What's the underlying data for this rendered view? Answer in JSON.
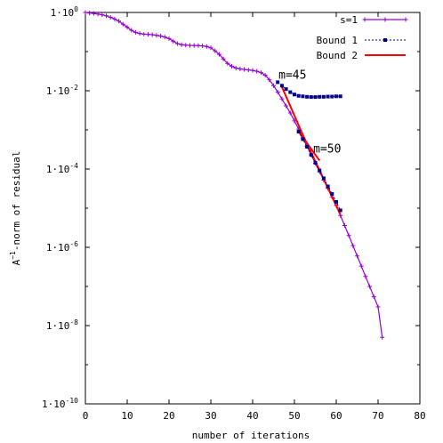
{
  "chart_data": {
    "type": "line",
    "xlabel": "number of iterations",
    "ylabel_parts": [
      "A",
      "−1",
      "-norm of residual"
    ],
    "xlim": [
      0,
      80
    ],
    "ylim": [
      1e-10,
      1
    ],
    "yscale": "log",
    "grid": false,
    "legend_position": "top-right",
    "x_ticks": [
      0,
      10,
      20,
      30,
      40,
      50,
      60,
      70,
      80
    ],
    "x_tick_labels": [
      "0",
      "10",
      "20",
      "30",
      "40",
      "50",
      "60",
      "70",
      "80"
    ],
    "y_ticks": [
      1,
      0.01,
      0.0001,
      1e-06,
      1e-08,
      1e-10
    ],
    "y_tick_labels": [
      {
        "base": "1·10",
        "exp": "0"
      },
      {
        "base": "1·10",
        "exp": "-2"
      },
      {
        "base": "1·10",
        "exp": "-4"
      },
      {
        "base": "1·10",
        "exp": "-6"
      },
      {
        "base": "1·10",
        "exp": "-8"
      },
      {
        "base": "1·10",
        "exp": "-10"
      }
    ],
    "annotations": [
      {
        "text": "m=45",
        "x": 46.2,
        "y": 0.0205
      },
      {
        "text": "m=50",
        "x": 54.5,
        "y": 0.00026
      }
    ],
    "series": [
      {
        "name": "s=1",
        "color": "#9400D3",
        "style": "line-plus",
        "x": [
          0,
          1,
          2,
          3,
          4,
          5,
          6,
          7,
          8,
          9,
          10,
          11,
          12,
          13,
          14,
          15,
          16,
          17,
          18,
          19,
          20,
          21,
          22,
          23,
          24,
          25,
          26,
          27,
          28,
          29,
          30,
          31,
          32,
          33,
          34,
          35,
          36,
          37,
          38,
          39,
          40,
          41,
          42,
          43,
          44,
          45,
          46,
          47,
          48,
          49,
          50,
          51,
          52,
          53,
          54,
          55,
          56,
          57,
          58,
          59,
          60,
          61,
          62,
          63,
          64,
          65,
          66,
          67,
          68,
          69,
          70,
          71
        ],
        "y": [
          1.0,
          0.97,
          0.94,
          0.91,
          0.87,
          0.82,
          0.75,
          0.68,
          0.6,
          0.5,
          0.42,
          0.35,
          0.31,
          0.29,
          0.28,
          0.275,
          0.27,
          0.26,
          0.25,
          0.235,
          0.215,
          0.185,
          0.16,
          0.15,
          0.146,
          0.144,
          0.143,
          0.142,
          0.14,
          0.135,
          0.125,
          0.105,
          0.085,
          0.065,
          0.05,
          0.042,
          0.038,
          0.036,
          0.035,
          0.034,
          0.033,
          0.0315,
          0.029,
          0.025,
          0.019,
          0.0135,
          0.0092,
          0.0062,
          0.0041,
          0.0027,
          0.0017,
          0.00105,
          0.00063,
          0.00038,
          0.00023,
          0.00014,
          8.5e-05,
          5.2e-05,
          3.2e-05,
          1.9e-05,
          1.17e-05,
          6.5e-06,
          3.6e-06,
          2e-06,
          1.1e-06,
          6e-07,
          3.3e-07,
          1.8e-07,
          9.91e-08,
          5.45e-08,
          3e-08,
          5e-09
        ]
      },
      {
        "name": "Bound 1",
        "color": "#00008B",
        "style": "dotted-square",
        "segments": [
          {
            "x": [
              46,
              47,
              48,
              49,
              50,
              51,
              52,
              53,
              54,
              55,
              56,
              57,
              58,
              59,
              60,
              61
            ],
            "y": [
              0.0165,
              0.0135,
              0.011,
              0.0092,
              0.008,
              0.0074,
              0.0072,
              0.007,
              0.0069,
              0.0069,
              0.007,
              0.007,
              0.0071,
              0.0071,
              0.0072,
              0.0072
            ]
          },
          {
            "x": [
              51,
              52,
              53,
              54,
              55,
              56,
              57,
              58,
              59,
              60,
              61
            ],
            "y": [
              0.0009,
              0.00058,
              0.00037,
              0.00023,
              0.000145,
              9.2e-05,
              5.8e-05,
              3.6e-05,
              2.3e-05,
              1.45e-05,
              8.8e-06
            ]
          }
        ]
      },
      {
        "name": "Bound 2",
        "color": "#FF0000",
        "style": "line",
        "segments": [
          {
            "x": [
              47,
              52
            ],
            "y": [
              0.0125,
              0.00075
            ]
          },
          {
            "x": [
              51,
              56
            ],
            "y": [
              0.0009,
              0.000165
            ]
          },
          {
            "x": [
              52,
              61
            ],
            "y": [
              0.00075,
              6.8e-06
            ]
          }
        ]
      }
    ]
  }
}
